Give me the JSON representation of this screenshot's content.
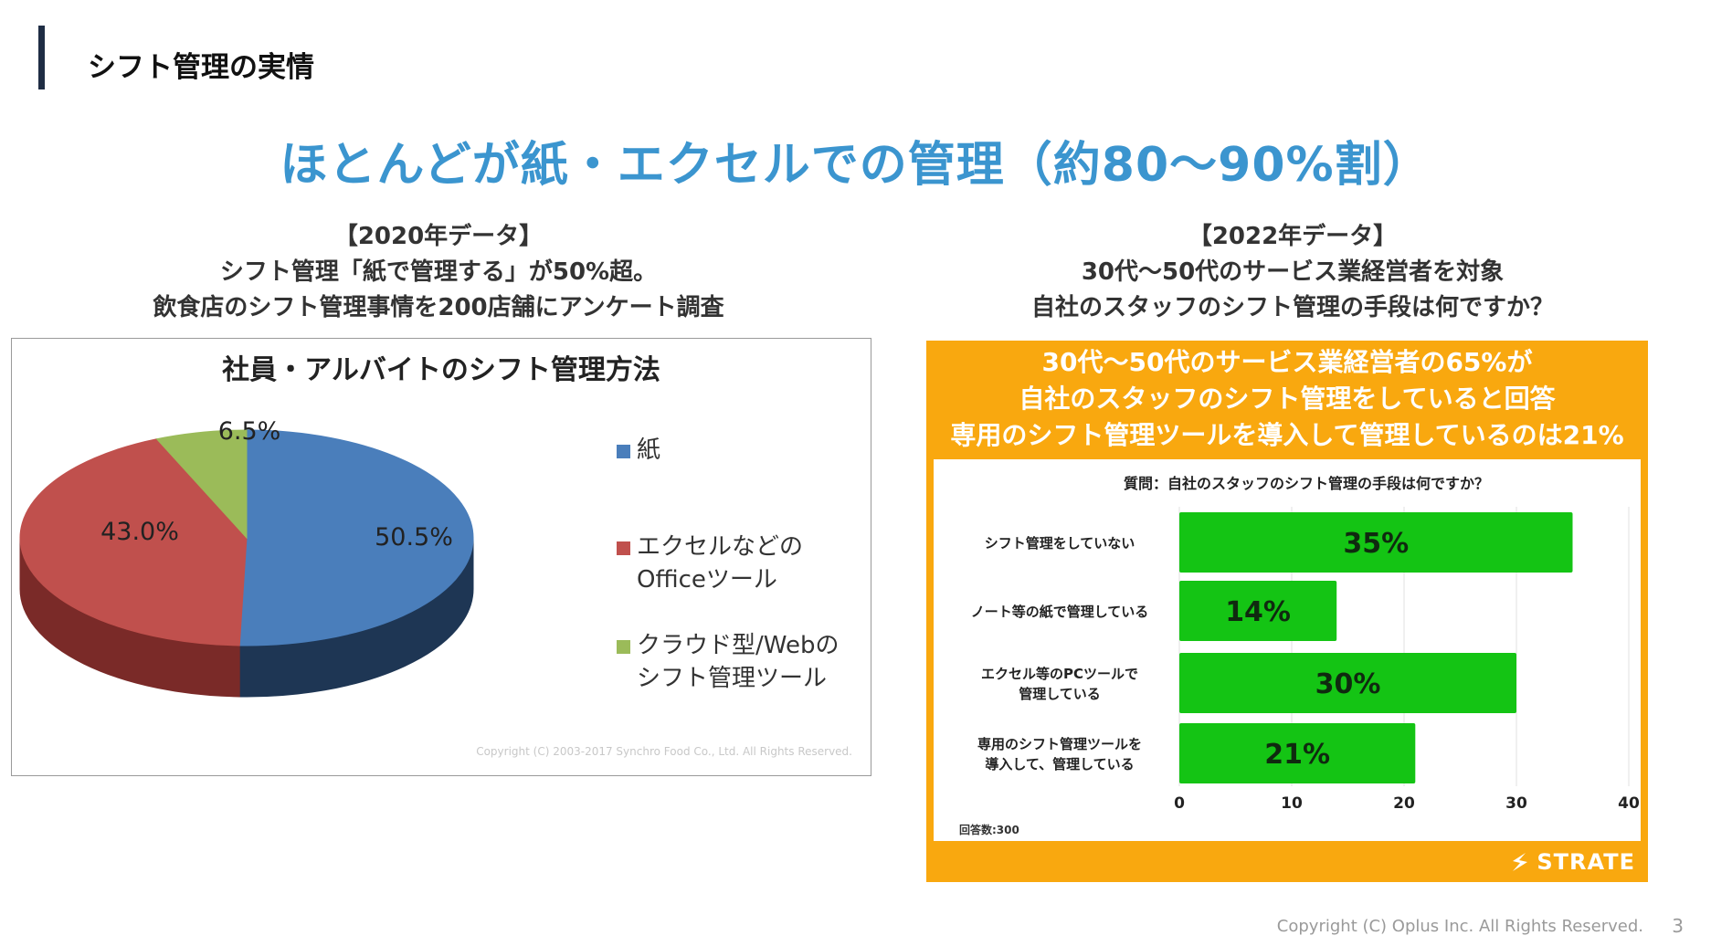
{
  "header": {
    "section_title": "シフト管理の実情"
  },
  "headline": "ほとんどが紙・エクセルでの管理（約80〜90%割）",
  "left": {
    "caption": [
      "【2020年データ】",
      "シフト管理「紙で管理する」が50%超。",
      "飲食店のシフト管理事情を200店舗にアンケート調査"
    ],
    "copyright": "Copyright (C) 2003-2017 Synchro Food Co., Ltd. All Rights Reserved."
  },
  "right": {
    "caption": [
      "【2022年データ】",
      "30代〜50代のサービス業経営者を対象",
      "自社のスタッフのシフト管理の手段は何ですか？"
    ],
    "banner": [
      "30代〜50代のサービス業経営者の65%が",
      "自社のスタッフのシフト管理をしていると回答",
      "専用のシフト管理ツールを導入して管理しているのは21%"
    ],
    "logo_text": "STRATE"
  },
  "footer": {
    "copyright": "Copyright (C) Oplus Inc. All Rights Reserved.",
    "page": "3"
  },
  "colors": {
    "accent_bar": "#1f2d44",
    "headline": "#3b95cf",
    "pie_blue": "#4a7ebb",
    "pie_red": "#c0504d",
    "pie_green": "#9bbb59",
    "banner_orange": "#f9a80f",
    "bar_green": "#14c414"
  },
  "chart_data": [
    {
      "type": "pie",
      "title": "社員・アルバイトのシフト管理方法",
      "categories": [
        "紙",
        "エクセルなどの\nOfficeツール",
        "クラウド型/Webの\nシフト管理ツール"
      ],
      "values": [
        50.5,
        43.0,
        6.5
      ],
      "data_labels": [
        "50.5%",
        "43.0%",
        "6.5%"
      ],
      "legend": "right"
    },
    {
      "type": "bar",
      "orientation": "horizontal",
      "title": "質問：自社のスタッフのシフト管理の手段は何ですか？",
      "categories": [
        "シフト管理をしていない",
        "ノート等の紙で管理している",
        "エクセル等のPCツールで\n管理している",
        "専用のシフト管理ツールを\n導入して、管理している"
      ],
      "values": [
        35,
        14,
        30,
        21
      ],
      "data_labels": [
        "35%",
        "14%",
        "30%",
        "21%"
      ],
      "xlim": [
        0,
        40
      ],
      "xticks": [
        0,
        10,
        20,
        30,
        40
      ],
      "grid": true,
      "note": "回答数:300"
    }
  ]
}
